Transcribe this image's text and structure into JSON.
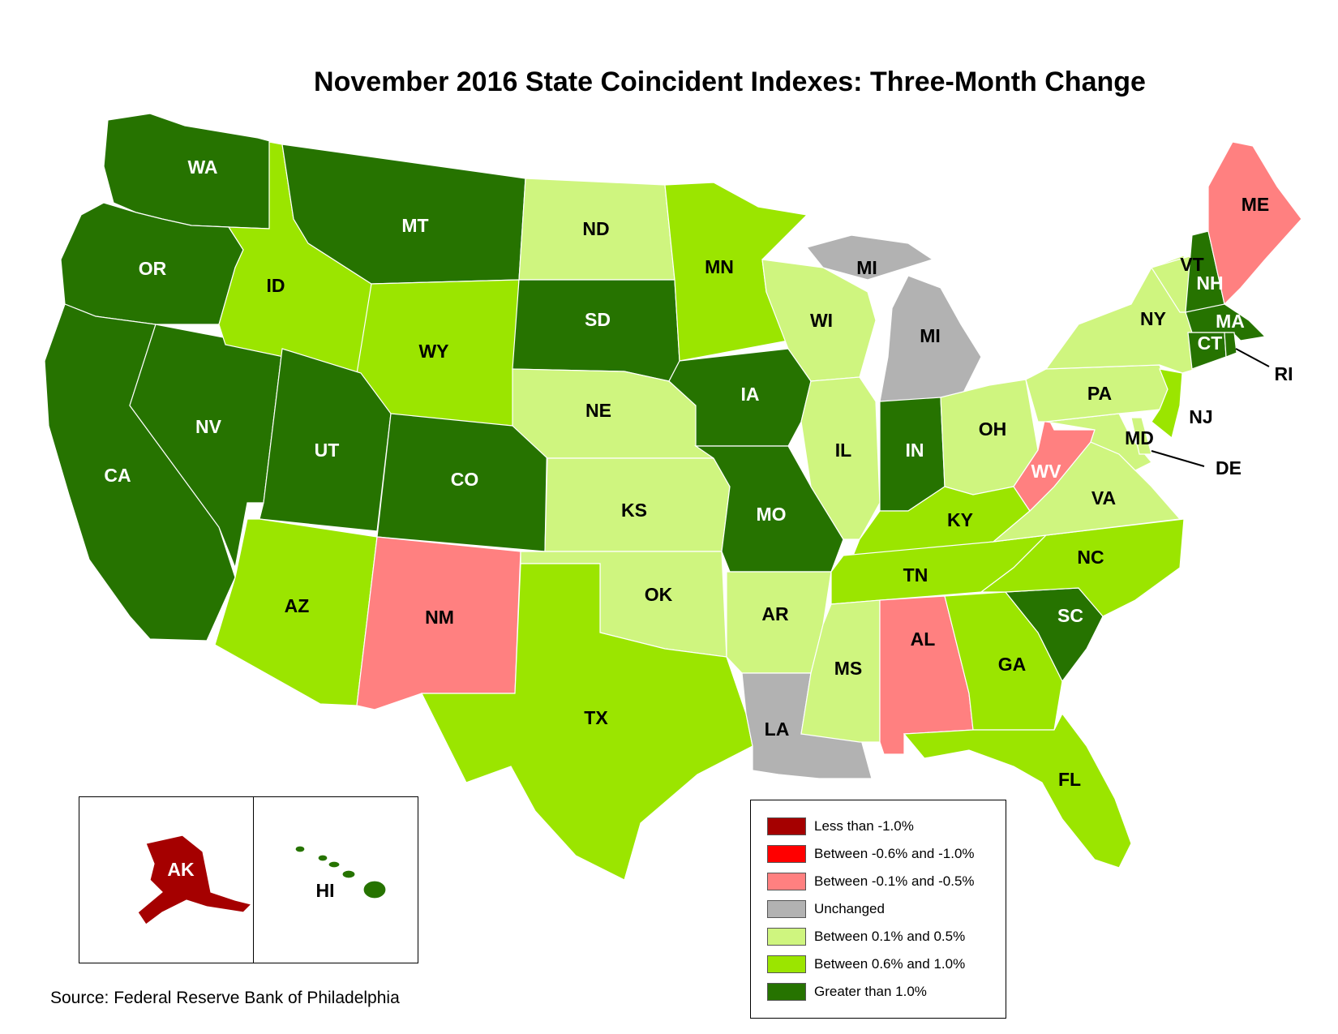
{
  "title": "November 2016 State Coincident Indexes: Three-Month Change",
  "source": "Source: Federal Reserve Bank of Philadelphia",
  "colors": {
    "lt_neg_1_0": "#a50000",
    "neg_0_6_to_1_0": "#ff0000",
    "neg_0_1_to_0_5": "#ff8080",
    "unchanged": "#b2b2b2",
    "pos_0_1_to_0_5": "#cff57f",
    "pos_0_6_to_1_0": "#9be500",
    "gt_1_0": "#267300"
  },
  "legend": [
    {
      "label": "Less than -1.0%",
      "category": "lt_neg_1_0"
    },
    {
      "label": "Between -0.6% and -1.0%",
      "category": "neg_0_6_to_1_0"
    },
    {
      "label": "Between -0.1% and -0.5%",
      "category": "neg_0_1_to_0_5"
    },
    {
      "label": "Unchanged",
      "category": "unchanged"
    },
    {
      "label": "Between 0.1% and 0.5%",
      "category": "pos_0_1_to_0_5"
    },
    {
      "label": "Between 0.6% and 1.0%",
      "category": "pos_0_6_to_1_0"
    },
    {
      "label": "Greater than 1.0%",
      "category": "gt_1_0"
    }
  ],
  "states": [
    {
      "abbr": "WA",
      "category": "gt_1_0"
    },
    {
      "abbr": "OR",
      "category": "gt_1_0"
    },
    {
      "abbr": "CA",
      "category": "gt_1_0"
    },
    {
      "abbr": "NV",
      "category": "gt_1_0"
    },
    {
      "abbr": "ID",
      "category": "pos_0_6_to_1_0"
    },
    {
      "abbr": "MT",
      "category": "gt_1_0"
    },
    {
      "abbr": "WY",
      "category": "pos_0_6_to_1_0"
    },
    {
      "abbr": "UT",
      "category": "gt_1_0"
    },
    {
      "abbr": "CO",
      "category": "gt_1_0"
    },
    {
      "abbr": "AZ",
      "category": "pos_0_6_to_1_0"
    },
    {
      "abbr": "NM",
      "category": "neg_0_1_to_0_5"
    },
    {
      "abbr": "ND",
      "category": "pos_0_1_to_0_5"
    },
    {
      "abbr": "SD",
      "category": "gt_1_0"
    },
    {
      "abbr": "NE",
      "category": "pos_0_1_to_0_5"
    },
    {
      "abbr": "KS",
      "category": "pos_0_1_to_0_5"
    },
    {
      "abbr": "OK",
      "category": "pos_0_1_to_0_5"
    },
    {
      "abbr": "TX",
      "category": "pos_0_6_to_1_0"
    },
    {
      "abbr": "MN",
      "category": "pos_0_6_to_1_0"
    },
    {
      "abbr": "IA",
      "category": "gt_1_0"
    },
    {
      "abbr": "MO",
      "category": "gt_1_0"
    },
    {
      "abbr": "AR",
      "category": "pos_0_1_to_0_5"
    },
    {
      "abbr": "LA",
      "category": "unchanged"
    },
    {
      "abbr": "WI",
      "category": "pos_0_1_to_0_5"
    },
    {
      "abbr": "MI",
      "category": "unchanged"
    },
    {
      "abbr": "IL",
      "category": "pos_0_1_to_0_5"
    },
    {
      "abbr": "IN",
      "category": "gt_1_0"
    },
    {
      "abbr": "OH",
      "category": "pos_0_1_to_0_5"
    },
    {
      "abbr": "KY",
      "category": "pos_0_6_to_1_0"
    },
    {
      "abbr": "TN",
      "category": "pos_0_6_to_1_0"
    },
    {
      "abbr": "MS",
      "category": "pos_0_1_to_0_5"
    },
    {
      "abbr": "AL",
      "category": "neg_0_1_to_0_5"
    },
    {
      "abbr": "GA",
      "category": "pos_0_6_to_1_0"
    },
    {
      "abbr": "FL",
      "category": "pos_0_6_to_1_0"
    },
    {
      "abbr": "SC",
      "category": "gt_1_0"
    },
    {
      "abbr": "NC",
      "category": "pos_0_6_to_1_0"
    },
    {
      "abbr": "VA",
      "category": "pos_0_1_to_0_5"
    },
    {
      "abbr": "WV",
      "category": "neg_0_1_to_0_5"
    },
    {
      "abbr": "PA",
      "category": "pos_0_1_to_0_5"
    },
    {
      "abbr": "NY",
      "category": "pos_0_1_to_0_5"
    },
    {
      "abbr": "VT",
      "category": "pos_0_1_to_0_5"
    },
    {
      "abbr": "NH",
      "category": "gt_1_0"
    },
    {
      "abbr": "ME",
      "category": "neg_0_1_to_0_5"
    },
    {
      "abbr": "MA",
      "category": "gt_1_0"
    },
    {
      "abbr": "CT",
      "category": "gt_1_0"
    },
    {
      "abbr": "RI",
      "category": "gt_1_0"
    },
    {
      "abbr": "NJ",
      "category": "pos_0_6_to_1_0"
    },
    {
      "abbr": "DE",
      "category": "pos_0_1_to_0_5"
    },
    {
      "abbr": "MD",
      "category": "pos_0_1_to_0_5"
    },
    {
      "abbr": "AK",
      "category": "lt_neg_1_0"
    },
    {
      "abbr": "HI",
      "category": "gt_1_0"
    }
  ],
  "labels": {
    "WA": "WA",
    "OR": "OR",
    "CA": "CA",
    "NV": "NV",
    "ID": "ID",
    "MT": "MT",
    "WY": "WY",
    "UT": "UT",
    "CO": "CO",
    "AZ": "AZ",
    "NM": "NM",
    "ND": "ND",
    "SD": "SD",
    "NE": "NE",
    "KS": "KS",
    "OK": "OK",
    "TX": "TX",
    "MN": "MN",
    "IA": "IA",
    "MO": "MO",
    "AR": "AR",
    "LA": "LA",
    "WI": "WI",
    "MI_UP": "MI",
    "MI": "MI",
    "IL": "IL",
    "IN": "IN",
    "OH": "OH",
    "KY": "KY",
    "TN": "TN",
    "MS": "MS",
    "AL": "AL",
    "GA": "GA",
    "FL": "FL",
    "SC": "SC",
    "NC": "NC",
    "VA": "VA",
    "WV": "WV",
    "PA": "PA",
    "NY": "NY",
    "VT": "VT",
    "NH": "NH",
    "ME": "ME",
    "MA": "MA",
    "CT": "CT",
    "RI": "RI",
    "NJ": "NJ",
    "DE": "DE",
    "MD": "MD",
    "AK": "AK",
    "HI": "HI"
  }
}
